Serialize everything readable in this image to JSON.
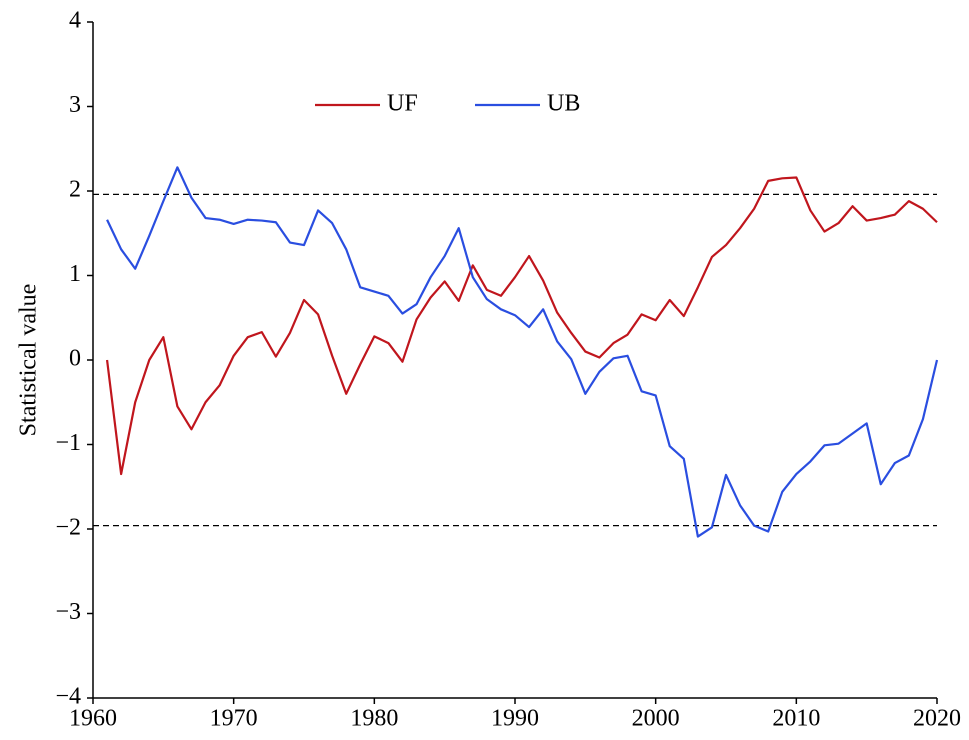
{
  "chart_data": {
    "type": "line",
    "y_label": "Statistical value",
    "x": [
      1961,
      1962,
      1963,
      1964,
      1965,
      1966,
      1967,
      1968,
      1969,
      1970,
      1971,
      1972,
      1973,
      1974,
      1975,
      1976,
      1977,
      1978,
      1979,
      1980,
      1981,
      1982,
      1983,
      1984,
      1985,
      1986,
      1987,
      1988,
      1989,
      1990,
      1991,
      1992,
      1993,
      1994,
      1995,
      1996,
      1997,
      1998,
      1999,
      2000,
      2001,
      2002,
      2003,
      2004,
      2005,
      2006,
      2007,
      2008,
      2009,
      2010,
      2011,
      2012,
      2013,
      2014,
      2015,
      2016,
      2017,
      2018,
      2019,
      2020
    ],
    "series": [
      {
        "name": "UF",
        "color": "#c0161d",
        "values": [
          0,
          -1.35,
          -0.5,
          0,
          0.27,
          -0.55,
          -0.82,
          -0.5,
          -0.3,
          0.05,
          0.27,
          0.33,
          0.04,
          0.32,
          0.71,
          0.54,
          0.05,
          -0.4,
          -0.05,
          0.28,
          0.2,
          -0.02,
          0.48,
          0.74,
          0.93,
          0.7,
          1.12,
          0.83,
          0.76,
          0.98,
          1.23,
          0.94,
          0.56,
          0.32,
          0.1,
          0.03,
          0.2,
          0.3,
          0.54,
          0.47,
          0.71,
          0.52,
          0.86,
          1.22,
          1.36,
          1.56,
          1.79,
          2.12,
          2.15,
          2.16,
          1.77,
          1.52,
          1.62,
          1.82,
          1.65,
          1.68,
          1.72,
          1.88,
          1.79,
          1.63
        ]
      },
      {
        "name": "UB",
        "color": "#2a4ee0",
        "values": [
          1.66,
          1.31,
          1.08,
          1.47,
          1.88,
          2.28,
          1.92,
          1.68,
          1.66,
          1.61,
          1.66,
          1.65,
          1.63,
          1.39,
          1.36,
          1.77,
          1.62,
          1.31,
          0.86,
          0.81,
          0.76,
          0.55,
          0.66,
          0.98,
          1.23,
          1.56,
          0.98,
          0.72,
          0.6,
          0.53,
          0.39,
          0.6,
          0.22,
          0.01,
          -0.4,
          -0.14,
          0.02,
          0.05,
          -0.37,
          -0.42,
          -1.02,
          -1.17,
          -2.09,
          -1.98,
          -1.36,
          -1.72,
          -1.96,
          -2.03,
          -1.56,
          -1.35,
          -1.2,
          -1.01,
          -0.99,
          -0.87,
          -0.75,
          -1.47,
          -1.22,
          -1.13,
          -0.7,
          0
        ]
      }
    ],
    "reference_lines": [
      1.96,
      -1.96
    ],
    "xlim": [
      1960,
      2020
    ],
    "xticks": [
      1960,
      1970,
      1980,
      1990,
      2000,
      2010,
      2020
    ],
    "ylim": [
      -4,
      4
    ],
    "yticks": [
      {
        "value": -4,
        "label": "−4"
      },
      {
        "value": -3,
        "label": "−3"
      },
      {
        "value": -2,
        "label": "−2"
      },
      {
        "value": -1,
        "label": "−1"
      },
      0,
      1,
      2,
      3,
      4
    ],
    "legend": "upper center",
    "grid": false
  }
}
